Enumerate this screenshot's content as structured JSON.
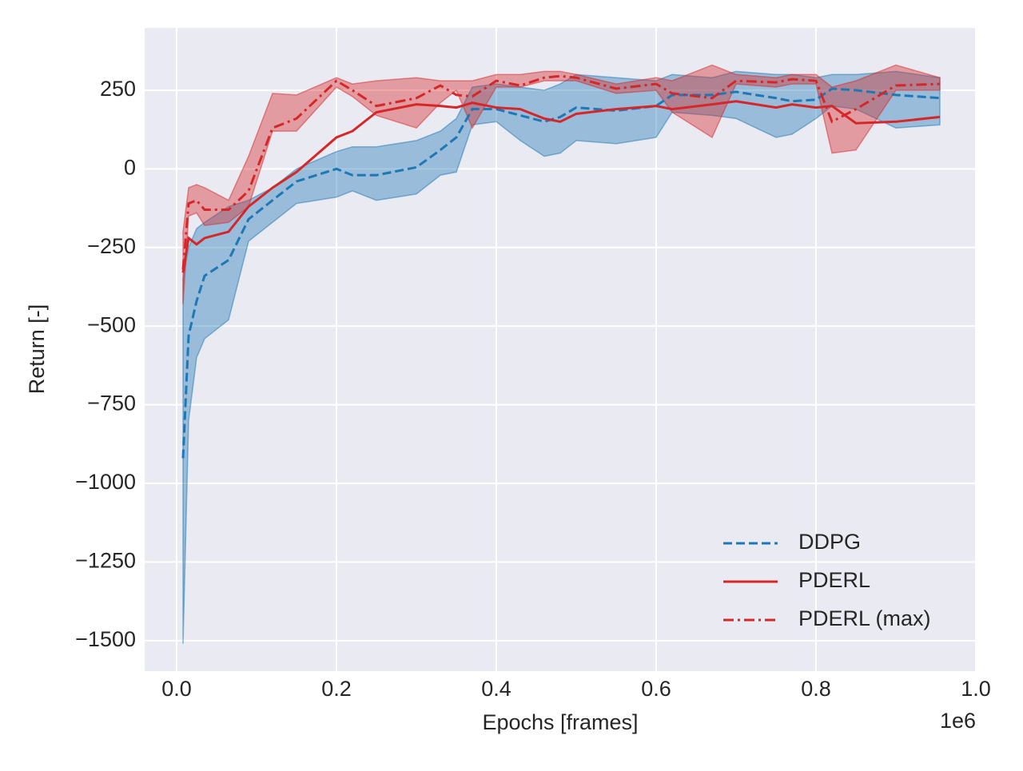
{
  "chart_data": {
    "type": "line",
    "xlabel": "Epochs [frames]",
    "ylabel": "Return [-]",
    "x_offset_label": "1e6",
    "x": [
      0.008,
      0.015,
      0.025,
      0.035,
      0.065,
      0.09,
      0.12,
      0.15,
      0.2,
      0.22,
      0.25,
      0.3,
      0.33,
      0.35,
      0.37,
      0.4,
      0.43,
      0.46,
      0.48,
      0.5,
      0.55,
      0.6,
      0.62,
      0.67,
      0.7,
      0.75,
      0.77,
      0.8,
      0.82,
      0.85,
      0.9,
      0.955
    ],
    "series": [
      {
        "name": "DDPG",
        "color": "#1f77b4",
        "linestyle": "dashed",
        "values": [
          -920,
          -530,
          -420,
          -340,
          -290,
          -160,
          -100,
          -40,
          0,
          -20,
          -20,
          5,
          60,
          100,
          190,
          190,
          170,
          150,
          165,
          195,
          185,
          200,
          235,
          235,
          245,
          225,
          215,
          220,
          255,
          250,
          235,
          225
        ],
        "lower": [
          -1510,
          -800,
          -600,
          -540,
          -480,
          -230,
          -170,
          -110,
          -90,
          -70,
          -100,
          -80,
          -20,
          -10,
          140,
          150,
          90,
          40,
          50,
          90,
          80,
          100,
          180,
          170,
          160,
          100,
          110,
          160,
          200,
          190,
          130,
          140
        ],
        "upper": [
          -350,
          -250,
          -190,
          -170,
          -120,
          -100,
          -60,
          0,
          55,
          70,
          70,
          90,
          120,
          160,
          260,
          270,
          260,
          250,
          270,
          300,
          290,
          280,
          300,
          290,
          310,
          300,
          300,
          290,
          300,
          300,
          310,
          290
        ]
      },
      {
        "name": "PDERL",
        "color": "#d62728",
        "linestyle": "solid",
        "values": [
          -330,
          -220,
          -240,
          -220,
          -200,
          -120,
          -60,
          -10,
          100,
          120,
          180,
          205,
          200,
          195,
          210,
          195,
          190,
          160,
          150,
          175,
          190,
          200,
          190,
          205,
          215,
          195,
          205,
          195,
          200,
          145,
          150,
          165
        ]
      },
      {
        "name": "PDERL (max)",
        "color": "#d62728",
        "linestyle": "dashdot",
        "values": [
          -320,
          -110,
          -100,
          -130,
          -130,
          -70,
          130,
          160,
          280,
          250,
          200,
          225,
          265,
          235,
          230,
          280,
          265,
          290,
          295,
          290,
          255,
          270,
          240,
          225,
          280,
          275,
          285,
          280,
          150,
          190,
          265,
          270
        ],
        "lower": [
          -430,
          -150,
          -140,
          -180,
          -170,
          -120,
          120,
          120,
          260,
          230,
          170,
          130,
          210,
          250,
          130,
          260,
          260,
          280,
          280,
          280,
          240,
          250,
          180,
          100,
          270,
          260,
          270,
          270,
          50,
          60,
          250,
          250
        ],
        "upper": [
          -200,
          -60,
          -50,
          -60,
          -100,
          40,
          240,
          235,
          290,
          270,
          280,
          290,
          280,
          280,
          280,
          300,
          300,
          310,
          310,
          300,
          270,
          290,
          280,
          330,
          300,
          290,
          300,
          300,
          260,
          280,
          330,
          290
        ]
      }
    ],
    "xlim": [
      -0.04,
      1.0
    ],
    "xticks": [
      {
        "value": 0,
        "label": "0.0"
      },
      0.2,
      0.4,
      0.6,
      0.8,
      {
        "value": 1,
        "label": "1.0"
      }
    ],
    "ylim": [
      -1597,
      448
    ],
    "yticks": [
      {
        "value": -1500,
        "label": "−1500"
      },
      {
        "value": -1250,
        "label": "−1250"
      },
      {
        "value": -1000,
        "label": "−1000"
      },
      {
        "value": -750,
        "label": "−750"
      },
      {
        "value": -500,
        "label": "−500"
      },
      {
        "value": -250,
        "label": "−250"
      },
      0,
      250
    ],
    "grid": true,
    "legend": "lower right",
    "band_alpha": 0.4
  }
}
